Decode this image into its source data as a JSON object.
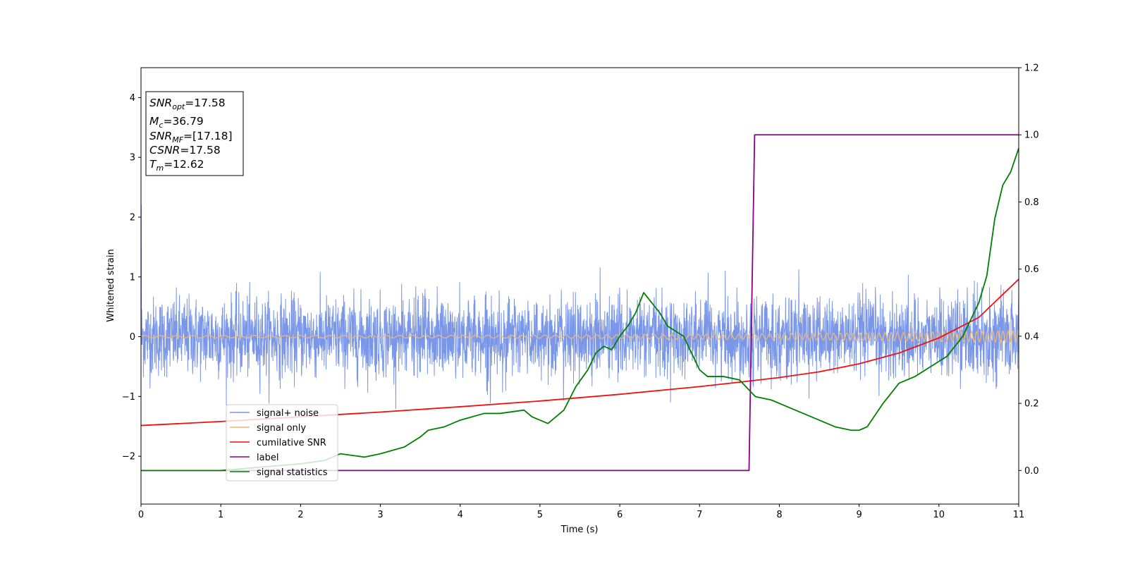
{
  "chart_data": {
    "type": "line",
    "xlabel": "Time (s)",
    "ylabel": "Whitened strain",
    "xlim": [
      0,
      11
    ],
    "ylim_left": [
      -2.8,
      4.5
    ],
    "ylim_right": [
      -0.1,
      1.2
    ],
    "x_ticks": [
      "0",
      "1",
      "2",
      "3",
      "4",
      "5",
      "6",
      "7",
      "8",
      "9",
      "10",
      "11"
    ],
    "y_ticks_left": [
      "−2",
      "−1",
      "0",
      "1",
      "2",
      "3",
      "4"
    ],
    "y_ticks_right": [
      "0.0",
      "0.2",
      "0.4",
      "0.6",
      "0.8",
      "1.0",
      "1.2"
    ],
    "grid": false,
    "legend_position": "lower-left",
    "annotation": {
      "lines": [
        {
          "base": "SNR",
          "sub": "opt",
          "value": "=17.58"
        },
        {
          "base": "M",
          "sub": "c",
          "value": "=36.79"
        },
        {
          "base": "SNR",
          "sub": "MF",
          "value": "=[17.18]"
        },
        {
          "base": "CSNR",
          "sub": "",
          "value": "=17.58"
        },
        {
          "base": "T",
          "sub": "m",
          "value": "=12.62"
        }
      ]
    },
    "series": [
      {
        "name": "signal+ noise",
        "color": "#7a96e8",
        "axis": "left",
        "description_values": {
          "amplitude_std": 0.33,
          "min": -1.25,
          "max": 1.3,
          "initial_spike": 2.2
        }
      },
      {
        "name": "signal only",
        "color": "#e8b77a",
        "axis": "left",
        "description_values": {
          "start_amplitude": 0.02,
          "end_amplitude": 0.1,
          "start_frequency_hz": 5,
          "end_frequency_hz": 16
        }
      },
      {
        "name": "cumilative SNR",
        "color": "#ee1111",
        "axis": "right",
        "x": [
          0,
          1,
          2,
          3,
          4,
          5,
          6,
          7,
          7.5,
          8,
          8.5,
          9,
          9.5,
          10,
          10.5,
          11
        ],
        "y": [
          0.134,
          0.146,
          0.16,
          0.174,
          0.19,
          0.207,
          0.227,
          0.25,
          0.263,
          0.277,
          0.294,
          0.318,
          0.35,
          0.395,
          0.456,
          0.57
        ]
      },
      {
        "name": "label",
        "color": "#8b008b",
        "axis": "right",
        "x": [
          0,
          7.62,
          7.69,
          11
        ],
        "y": [
          0,
          0,
          1,
          1
        ]
      },
      {
        "name": "signal statistics",
        "color": "#008000",
        "axis": "right",
        "x": [
          0,
          0.5,
          1,
          1.5,
          2,
          2.3,
          2.5,
          2.8,
          3,
          3.3,
          3.5,
          3.6,
          3.8,
          4,
          4.3,
          4.5,
          4.8,
          4.9,
          5,
          5.1,
          5.3,
          5.45,
          5.6,
          5.7,
          5.8,
          5.9,
          6,
          6.1,
          6.2,
          6.3,
          6.4,
          6.5,
          6.6,
          6.8,
          6.9,
          7,
          7.1,
          7.3,
          7.5,
          7.7,
          7.9,
          8.1,
          8.3,
          8.5,
          8.7,
          8.9,
          9,
          9.1,
          9.3,
          9.5,
          9.7,
          9.9,
          10.1,
          10.3,
          10.5,
          10.6,
          10.7,
          10.8,
          10.9,
          11
        ],
        "y": [
          0.0,
          0.0,
          0.0,
          0.01,
          0.02,
          0.03,
          0.05,
          0.04,
          0.05,
          0.07,
          0.1,
          0.12,
          0.13,
          0.15,
          0.17,
          0.17,
          0.18,
          0.16,
          0.15,
          0.14,
          0.18,
          0.25,
          0.3,
          0.35,
          0.37,
          0.36,
          0.4,
          0.43,
          0.47,
          0.53,
          0.5,
          0.47,
          0.43,
          0.4,
          0.35,
          0.3,
          0.28,
          0.28,
          0.27,
          0.22,
          0.21,
          0.19,
          0.17,
          0.15,
          0.13,
          0.12,
          0.12,
          0.13,
          0.2,
          0.26,
          0.28,
          0.31,
          0.34,
          0.4,
          0.5,
          0.58,
          0.75,
          0.85,
          0.89,
          0.96
        ]
      }
    ]
  }
}
